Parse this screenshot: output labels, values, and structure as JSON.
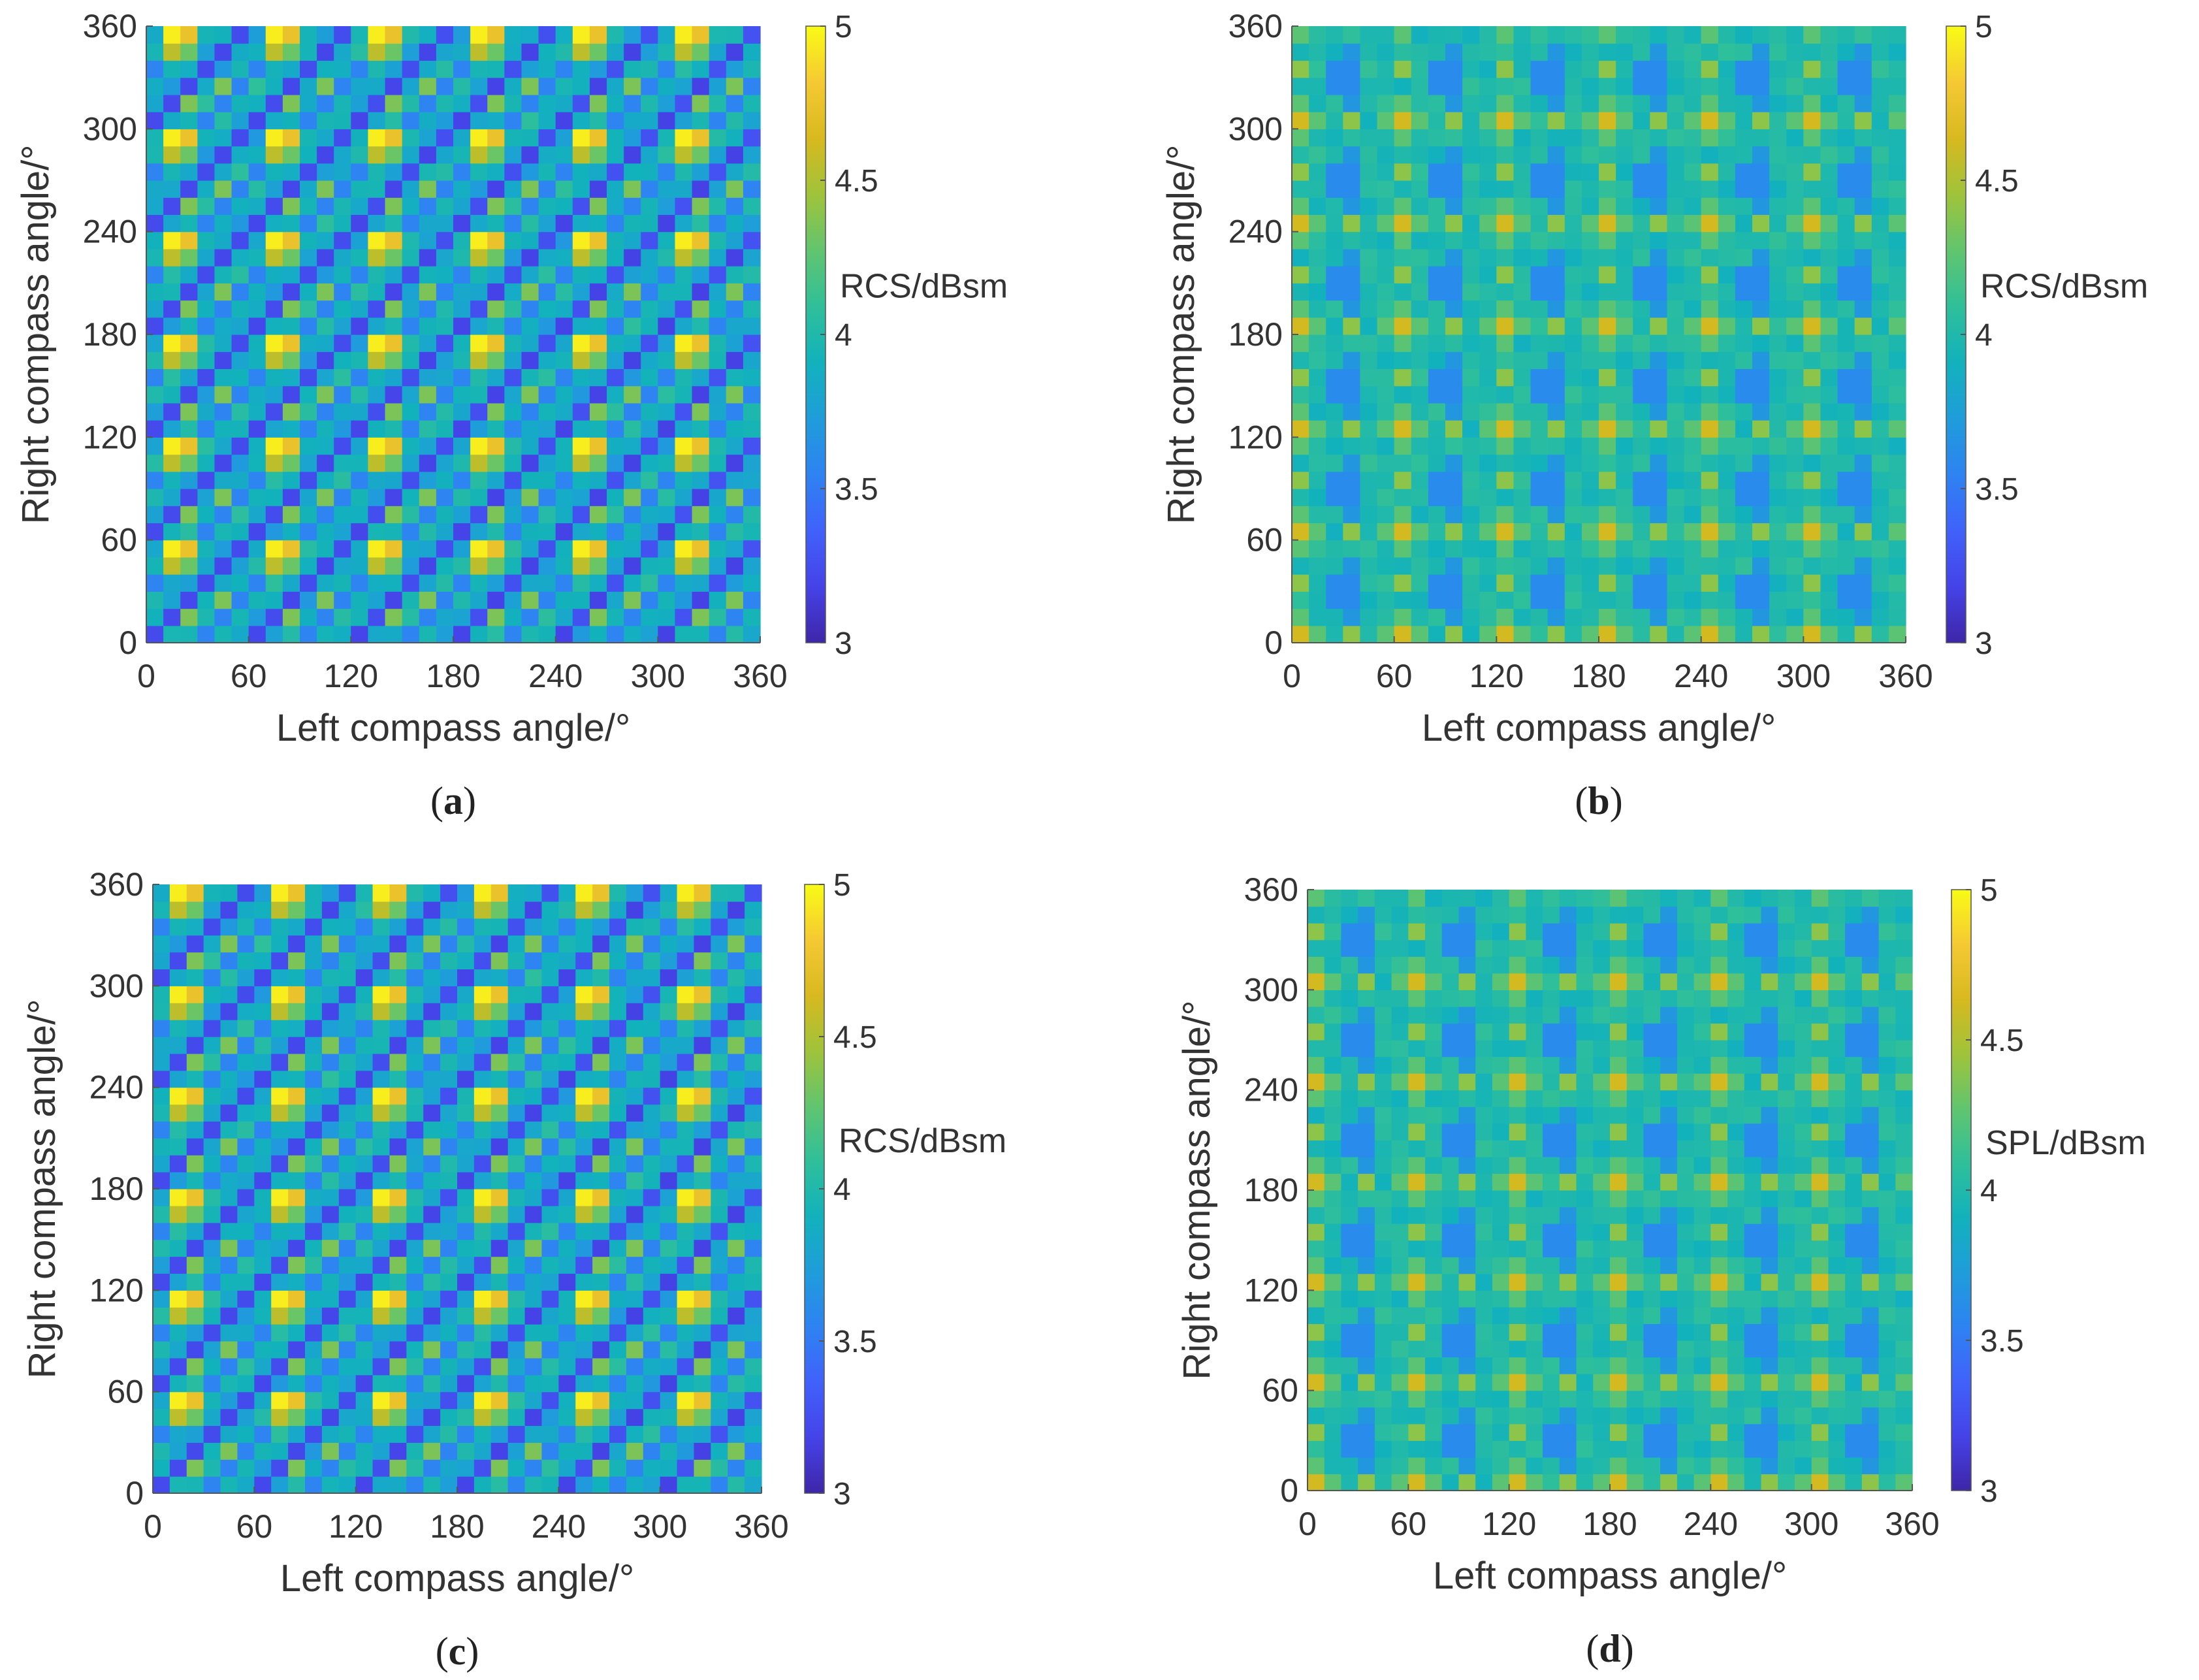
{
  "figure": {
    "title": "Four-panel heatmap figure of RCS / SPL versus left and right compass angles"
  },
  "colors": {
    "colormap": [
      "#3e26a8",
      "#4543e8",
      "#4062fa",
      "#2e83f2",
      "#1f9dda",
      "#12b2bc",
      "#2fbf9a",
      "#61c56f",
      "#a0c33a",
      "#d8b91f",
      "#f5c933",
      "#f9fb15"
    ],
    "axis": "#555555",
    "text": "#333333"
  },
  "chart_data": [
    {
      "id": "a",
      "type": "heatmap",
      "panel_label": "a",
      "xlabel": "Left compass angle/°",
      "ylabel": "Right compass angle/°",
      "xlim": [
        0,
        360
      ],
      "ylim": [
        0,
        360
      ],
      "xticks": [
        "0",
        "60",
        "120",
        "180",
        "240",
        "300",
        "360"
      ],
      "yticks": [
        "0",
        "60",
        "120",
        "180",
        "240",
        "300",
        "360"
      ],
      "colorbar": {
        "label": "RCS/dBsm",
        "range": [
          3,
          5
        ],
        "ticks": [
          "3",
          "3.5",
          "4",
          "4.5",
          "5"
        ]
      },
      "grid_cells": 36,
      "cell_size_deg": 10,
      "pattern": "diagonal-dark-bands",
      "value_range_observed": [
        3.1,
        5.0
      ]
    },
    {
      "id": "b",
      "type": "heatmap",
      "panel_label": "b",
      "xlabel": "Left compass angle/°",
      "ylabel": "Right compass angle/°",
      "xlim": [
        0,
        360
      ],
      "ylim": [
        0,
        360
      ],
      "xticks": [
        "0",
        "60",
        "120",
        "180",
        "240",
        "300",
        "360"
      ],
      "yticks": [
        "0",
        "60",
        "120",
        "180",
        "240",
        "300",
        "360"
      ],
      "colorbar": {
        "label": "RCS/dBsm",
        "range": [
          3,
          5
        ],
        "ticks": [
          "3",
          "3.5",
          "4",
          "4.5",
          "5"
        ]
      },
      "grid_cells": 36,
      "cell_size_deg": 10,
      "pattern": "periodic-60deg-blobs",
      "value_range_observed": [
        3.5,
        4.7
      ]
    },
    {
      "id": "c",
      "type": "heatmap",
      "panel_label": "c",
      "xlabel": "Left compass angle/°",
      "ylabel": "Right compass angle/°",
      "xlim": [
        0,
        360
      ],
      "ylim": [
        0,
        360
      ],
      "xticks": [
        "0",
        "60",
        "120",
        "180",
        "240",
        "300",
        "360"
      ],
      "yticks": [
        "0",
        "60",
        "120",
        "180",
        "240",
        "300",
        "360"
      ],
      "colorbar": {
        "label": "RCS/dBsm",
        "range": [
          3,
          5
        ],
        "ticks": [
          "3",
          "3.5",
          "4",
          "4.5",
          "5"
        ]
      },
      "grid_cells": 36,
      "cell_size_deg": 10,
      "pattern": "diagonal-dark-bands",
      "value_range_observed": [
        3.1,
        5.0
      ]
    },
    {
      "id": "d",
      "type": "heatmap",
      "panel_label": "d",
      "xlabel": "Left compass angle/°",
      "ylabel": "Right compass angle/°",
      "xlim": [
        0,
        360
      ],
      "ylim": [
        0,
        360
      ],
      "xticks": [
        "0",
        "60",
        "120",
        "180",
        "240",
        "300",
        "360"
      ],
      "yticks": [
        "0",
        "60",
        "120",
        "180",
        "240",
        "300",
        "360"
      ],
      "colorbar": {
        "label": "SPL/dBsm",
        "range": [
          3,
          5
        ],
        "ticks": [
          "3",
          "3.5",
          "4",
          "4.5",
          "5"
        ]
      },
      "grid_cells": 36,
      "cell_size_deg": 10,
      "pattern": "periodic-60deg-blobs",
      "value_range_observed": [
        3.5,
        4.7
      ]
    }
  ]
}
